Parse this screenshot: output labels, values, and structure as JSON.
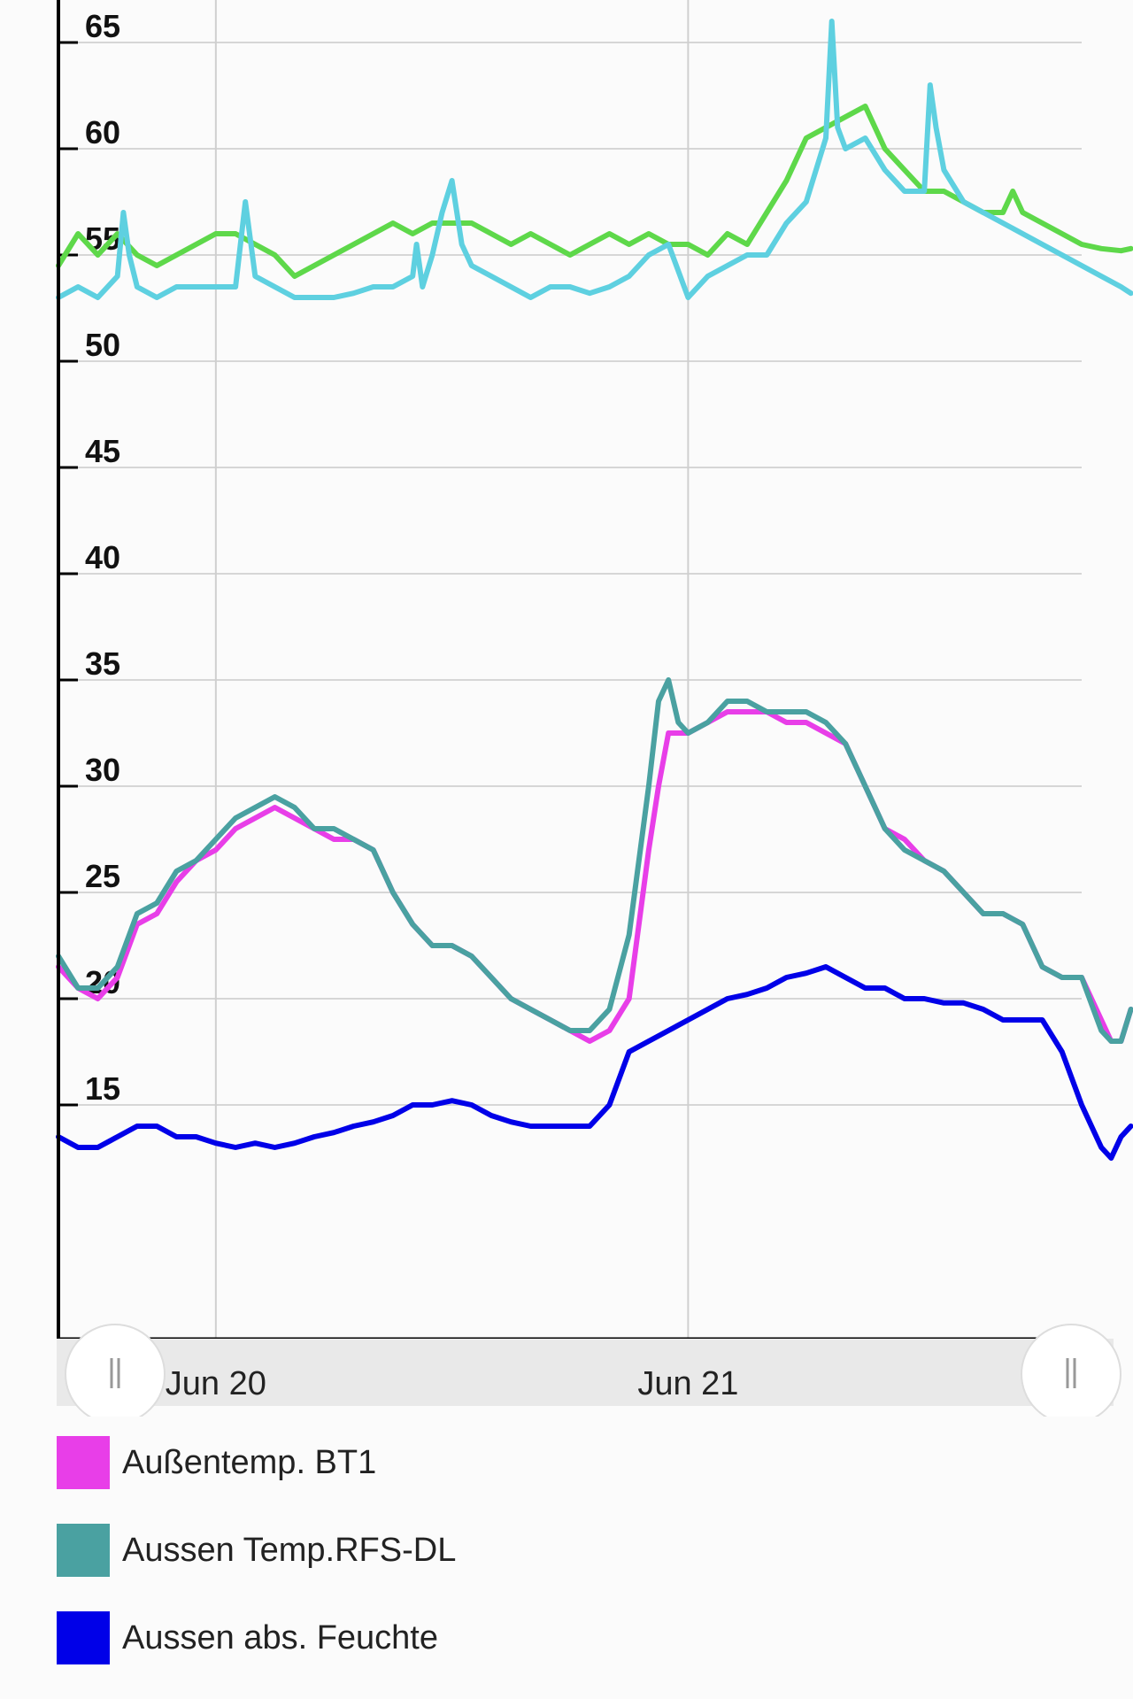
{
  "chart_data": {
    "type": "line",
    "ylim": [
      4,
      67
    ],
    "yticks": [
      15,
      20,
      25,
      30,
      35,
      40,
      45,
      50,
      55,
      60,
      65
    ],
    "xlim": [
      0,
      52
    ],
    "xticks": [
      {
        "x": 8,
        "label": "Jun 20"
      },
      {
        "x": 32,
        "label": "Jun 21"
      }
    ],
    "grid": true,
    "legend_position": "bottom",
    "series": [
      {
        "name": "Außentemp. BT1",
        "color": "#e83ee8",
        "values": [
          [
            0,
            21.5
          ],
          [
            1,
            20.5
          ],
          [
            2,
            20
          ],
          [
            3,
            21
          ],
          [
            4,
            23.5
          ],
          [
            5,
            24
          ],
          [
            6,
            25.5
          ],
          [
            7,
            26.5
          ],
          [
            8,
            27
          ],
          [
            9,
            28
          ],
          [
            10,
            28.5
          ],
          [
            11,
            29
          ],
          [
            12,
            28.5
          ],
          [
            13,
            28
          ],
          [
            14,
            27.5
          ],
          [
            15,
            27.5
          ],
          [
            16,
            27
          ],
          [
            17,
            25
          ],
          [
            18,
            23.5
          ],
          [
            19,
            22.5
          ],
          [
            20,
            22.5
          ],
          [
            21,
            22
          ],
          [
            22,
            21
          ],
          [
            23,
            20
          ],
          [
            24,
            19.5
          ],
          [
            25,
            19
          ],
          [
            26,
            18.5
          ],
          [
            27,
            18
          ],
          [
            28,
            18.5
          ],
          [
            29,
            20
          ],
          [
            30,
            27
          ],
          [
            30.5,
            30
          ],
          [
            31,
            32.5
          ],
          [
            32,
            32.5
          ],
          [
            33,
            33
          ],
          [
            34,
            33.5
          ],
          [
            35,
            33.5
          ],
          [
            36,
            33.5
          ],
          [
            37,
            33
          ],
          [
            38,
            33
          ],
          [
            39,
            32.5
          ],
          [
            40,
            32
          ],
          [
            41,
            30
          ],
          [
            42,
            28
          ],
          [
            43,
            27.5
          ],
          [
            44,
            26.5
          ],
          [
            45,
            26
          ],
          [
            46,
            25
          ],
          [
            47,
            24
          ],
          [
            48,
            24
          ],
          [
            49,
            23.5
          ],
          [
            50,
            21.5
          ],
          [
            51,
            21
          ],
          [
            52,
            21
          ],
          [
            53,
            19
          ],
          [
            53.5,
            18
          ],
          [
            54,
            18
          ],
          [
            54.5,
            19.5
          ]
        ]
      },
      {
        "name": "Aussen Temp.RFS-DL",
        "color": "#4aa1a1",
        "values": [
          [
            0,
            22
          ],
          [
            1,
            20.5
          ],
          [
            2,
            20.5
          ],
          [
            3,
            21.5
          ],
          [
            4,
            24
          ],
          [
            5,
            24.5
          ],
          [
            6,
            26
          ],
          [
            7,
            26.5
          ],
          [
            8,
            27.5
          ],
          [
            9,
            28.5
          ],
          [
            10,
            29
          ],
          [
            11,
            29.5
          ],
          [
            12,
            29
          ],
          [
            13,
            28
          ],
          [
            14,
            28
          ],
          [
            15,
            27.5
          ],
          [
            16,
            27
          ],
          [
            17,
            25
          ],
          [
            18,
            23.5
          ],
          [
            19,
            22.5
          ],
          [
            20,
            22.5
          ],
          [
            21,
            22
          ],
          [
            22,
            21
          ],
          [
            23,
            20
          ],
          [
            24,
            19.5
          ],
          [
            25,
            19
          ],
          [
            26,
            18.5
          ],
          [
            27,
            18.5
          ],
          [
            28,
            19.5
          ],
          [
            29,
            23
          ],
          [
            30,
            30
          ],
          [
            30.5,
            34
          ],
          [
            31,
            35
          ],
          [
            31.5,
            33
          ],
          [
            32,
            32.5
          ],
          [
            33,
            33
          ],
          [
            34,
            34
          ],
          [
            35,
            34
          ],
          [
            36,
            33.5
          ],
          [
            37,
            33.5
          ],
          [
            38,
            33.5
          ],
          [
            39,
            33
          ],
          [
            40,
            32
          ],
          [
            41,
            30
          ],
          [
            42,
            28
          ],
          [
            43,
            27
          ],
          [
            44,
            26.5
          ],
          [
            45,
            26
          ],
          [
            46,
            25
          ],
          [
            47,
            24
          ],
          [
            48,
            24
          ],
          [
            49,
            23.5
          ],
          [
            50,
            21.5
          ],
          [
            51,
            21
          ],
          [
            52,
            21
          ],
          [
            53,
            18.5
          ],
          [
            53.5,
            18
          ],
          [
            54,
            18
          ],
          [
            54.5,
            19.5
          ]
        ]
      },
      {
        "name": "Aussen abs. Feuchte",
        "color": "#0000e8",
        "values": [
          [
            0,
            13.5
          ],
          [
            1,
            13
          ],
          [
            2,
            13
          ],
          [
            3,
            13.5
          ],
          [
            4,
            14
          ],
          [
            5,
            14
          ],
          [
            6,
            13.5
          ],
          [
            7,
            13.5
          ],
          [
            8,
            13.2
          ],
          [
            9,
            13
          ],
          [
            10,
            13.2
          ],
          [
            11,
            13
          ],
          [
            12,
            13.2
          ],
          [
            13,
            13.5
          ],
          [
            14,
            13.7
          ],
          [
            15,
            14
          ],
          [
            16,
            14.2
          ],
          [
            17,
            14.5
          ],
          [
            18,
            15
          ],
          [
            19,
            15
          ],
          [
            20,
            15.2
          ],
          [
            21,
            15
          ],
          [
            22,
            14.5
          ],
          [
            23,
            14.2
          ],
          [
            24,
            14
          ],
          [
            25,
            14
          ],
          [
            26,
            14
          ],
          [
            27,
            14
          ],
          [
            28,
            15
          ],
          [
            29,
            17.5
          ],
          [
            30,
            18
          ],
          [
            31,
            18.5
          ],
          [
            32,
            19
          ],
          [
            33,
            19.5
          ],
          [
            34,
            20
          ],
          [
            35,
            20.2
          ],
          [
            36,
            20.5
          ],
          [
            37,
            21
          ],
          [
            38,
            21.2
          ],
          [
            39,
            21.5
          ],
          [
            40,
            21
          ],
          [
            41,
            20.5
          ],
          [
            42,
            20.5
          ],
          [
            43,
            20
          ],
          [
            44,
            20
          ],
          [
            45,
            19.8
          ],
          [
            46,
            19.8
          ],
          [
            47,
            19.5
          ],
          [
            48,
            19
          ],
          [
            49,
            19
          ],
          [
            50,
            19
          ],
          [
            51,
            17.5
          ],
          [
            52,
            15
          ],
          [
            53,
            13
          ],
          [
            53.5,
            12.5
          ],
          [
            54,
            13.5
          ],
          [
            54.5,
            14
          ]
        ]
      },
      {
        "name": "",
        "color": "#5ed84a",
        "values": [
          [
            0,
            54.5
          ],
          [
            1,
            56
          ],
          [
            2,
            55
          ],
          [
            3,
            56
          ],
          [
            4,
            55
          ],
          [
            5,
            54.5
          ],
          [
            6,
            55
          ],
          [
            7,
            55.5
          ],
          [
            8,
            56
          ],
          [
            9,
            56
          ],
          [
            10,
            55.5
          ],
          [
            11,
            55
          ],
          [
            12,
            54
          ],
          [
            13,
            54.5
          ],
          [
            14,
            55
          ],
          [
            15,
            55.5
          ],
          [
            16,
            56
          ],
          [
            17,
            56.5
          ],
          [
            18,
            56
          ],
          [
            19,
            56.5
          ],
          [
            20,
            56.5
          ],
          [
            21,
            56.5
          ],
          [
            22,
            56
          ],
          [
            23,
            55.5
          ],
          [
            24,
            56
          ],
          [
            25,
            55.5
          ],
          [
            26,
            55
          ],
          [
            27,
            55.5
          ],
          [
            28,
            56
          ],
          [
            29,
            55.5
          ],
          [
            30,
            56
          ],
          [
            31,
            55.5
          ],
          [
            32,
            55.5
          ],
          [
            33,
            55
          ],
          [
            34,
            56
          ],
          [
            35,
            55.5
          ],
          [
            36,
            57
          ],
          [
            37,
            58.5
          ],
          [
            38,
            60.5
          ],
          [
            39,
            61
          ],
          [
            40,
            61.5
          ],
          [
            41,
            62
          ],
          [
            42,
            60
          ],
          [
            43,
            59
          ],
          [
            44,
            58
          ],
          [
            45,
            58
          ],
          [
            46,
            57.5
          ],
          [
            47,
            57
          ],
          [
            48,
            57
          ],
          [
            48.5,
            58
          ],
          [
            49,
            57
          ],
          [
            50,
            56.5
          ],
          [
            51,
            56
          ],
          [
            52,
            55.5
          ],
          [
            53,
            55.3
          ],
          [
            54,
            55.2
          ],
          [
            54.5,
            55.3
          ]
        ]
      },
      {
        "name": "",
        "color": "#5ed0e0",
        "values": [
          [
            0,
            53
          ],
          [
            1,
            53.5
          ],
          [
            2,
            53
          ],
          [
            3,
            54
          ],
          [
            3.3,
            57
          ],
          [
            3.6,
            55
          ],
          [
            4,
            53.5
          ],
          [
            5,
            53
          ],
          [
            6,
            53.5
          ],
          [
            7,
            53.5
          ],
          [
            8,
            53.5
          ],
          [
            9,
            53.5
          ],
          [
            9.5,
            57.5
          ],
          [
            10,
            54
          ],
          [
            11,
            53.5
          ],
          [
            12,
            53
          ],
          [
            13,
            53
          ],
          [
            14,
            53
          ],
          [
            15,
            53.2
          ],
          [
            16,
            53.5
          ],
          [
            17,
            53.5
          ],
          [
            18,
            54
          ],
          [
            18.2,
            55.5
          ],
          [
            18.5,
            53.5
          ],
          [
            19,
            55
          ],
          [
            19.5,
            57
          ],
          [
            20,
            58.5
          ],
          [
            20.5,
            55.5
          ],
          [
            21,
            54.5
          ],
          [
            22,
            54
          ],
          [
            23,
            53.5
          ],
          [
            24,
            53
          ],
          [
            25,
            53.5
          ],
          [
            26,
            53.5
          ],
          [
            27,
            53.2
          ],
          [
            28,
            53.5
          ],
          [
            29,
            54
          ],
          [
            30,
            55
          ],
          [
            31,
            55.5
          ],
          [
            32,
            53
          ],
          [
            33,
            54
          ],
          [
            34,
            54.5
          ],
          [
            35,
            55
          ],
          [
            36,
            55
          ],
          [
            37,
            56.5
          ],
          [
            38,
            57.5
          ],
          [
            38.5,
            59
          ],
          [
            39,
            60.5
          ],
          [
            39.3,
            66
          ],
          [
            39.6,
            61
          ],
          [
            40,
            60
          ],
          [
            41,
            60.5
          ],
          [
            42,
            59
          ],
          [
            43,
            58
          ],
          [
            44,
            58
          ],
          [
            44.3,
            63
          ],
          [
            44.6,
            61
          ],
          [
            45,
            59
          ],
          [
            46,
            57.5
          ],
          [
            47,
            57
          ],
          [
            48,
            56.5
          ],
          [
            49,
            56
          ],
          [
            50,
            55.5
          ],
          [
            51,
            55
          ],
          [
            52,
            54.5
          ],
          [
            53,
            54
          ],
          [
            54,
            53.5
          ],
          [
            54.5,
            53.2
          ]
        ]
      }
    ]
  },
  "legend": [
    {
      "label": "Außentemp. BT1",
      "color": "#e83ee8"
    },
    {
      "label": "Aussen Temp.RFS-DL",
      "color": "#4aa1a1"
    },
    {
      "label": "Aussen abs. Feuchte",
      "color": "#0000e8"
    }
  ]
}
